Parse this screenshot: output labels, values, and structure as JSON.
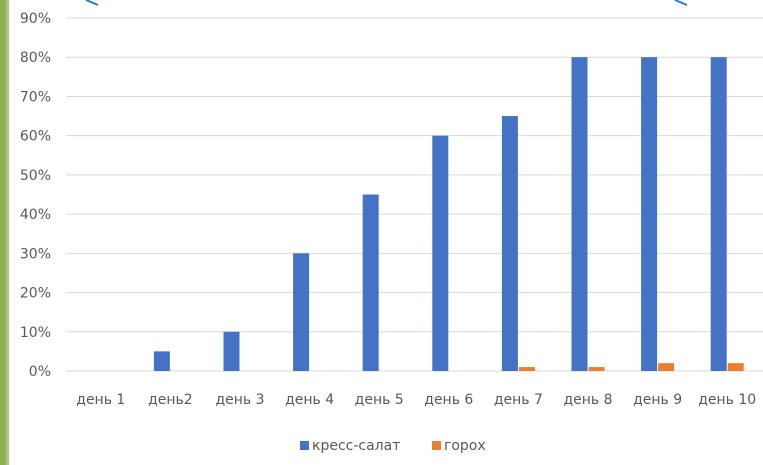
{
  "colors": {
    "frame": "#8db255",
    "grid": "#d9d9d9",
    "text": "#595959",
    "accent_line": "#2e75d6"
  },
  "chart_data": {
    "type": "bar",
    "categories": [
      "день 1",
      "день2",
      "день 3",
      "день 4",
      "день 5",
      "день 6",
      "день 7",
      "день 8",
      "день 9",
      "день 10"
    ],
    "series": [
      {
        "name": "кресс-салат",
        "color": "#4472c4",
        "values": [
          0,
          5,
          10,
          30,
          45,
          60,
          65,
          80,
          80,
          80
        ]
      },
      {
        "name": "горох",
        "color": "#ed7d31",
        "values": [
          0,
          0,
          0,
          0,
          0,
          0,
          1,
          1,
          2,
          2
        ]
      }
    ],
    "y_ticks": [
      "0%",
      "10%",
      "20%",
      "30%",
      "40%",
      "50%",
      "60%",
      "70%",
      "80%",
      "90%"
    ],
    "ylim": [
      0,
      90
    ],
    "y_unit": "%",
    "grid": true,
    "legend_position": "bottom"
  }
}
